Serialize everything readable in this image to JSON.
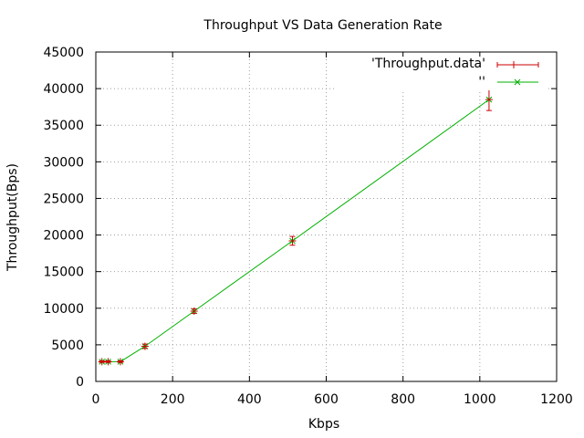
{
  "colors": {
    "errorbars": "#cc0000",
    "line": "#00b000",
    "axes": "#000000",
    "grid": "#a0a0a0"
  },
  "chart_data": {
    "type": "line",
    "title": "Throughput VS Data Generation Rate",
    "xlabel": "Kbps",
    "ylabel": "Throughput(Bps)",
    "xlim": [
      0,
      1200
    ],
    "ylim": [
      0,
      45000
    ],
    "x_ticks": [
      0,
      200,
      400,
      600,
      800,
      1000,
      1200
    ],
    "y_ticks": [
      0,
      5000,
      10000,
      15000,
      20000,
      25000,
      30000,
      35000,
      40000,
      45000
    ],
    "grid": true,
    "legend_position": "top-right",
    "series": [
      {
        "name": "'Throughput.data'",
        "style": "errorbars",
        "marker": "plus",
        "color": "#cc0000",
        "x": [
          16,
          32,
          64,
          128,
          256,
          512,
          1024
        ],
        "y": [
          2700,
          2700,
          2700,
          4800,
          9600,
          19200,
          38500
        ],
        "ylow": [
          2600,
          2600,
          2600,
          4500,
          9300,
          18600,
          37000
        ],
        "yhigh": [
          2800,
          2800,
          2800,
          5100,
          9900,
          19800,
          40000
        ]
      },
      {
        "name": "''",
        "style": "linespoints",
        "marker": "cross",
        "color": "#00b000",
        "x": [
          16,
          32,
          64,
          128,
          256,
          512,
          1024
        ],
        "y": [
          2700,
          2700,
          2700,
          4800,
          9600,
          19200,
          38500
        ]
      }
    ]
  }
}
